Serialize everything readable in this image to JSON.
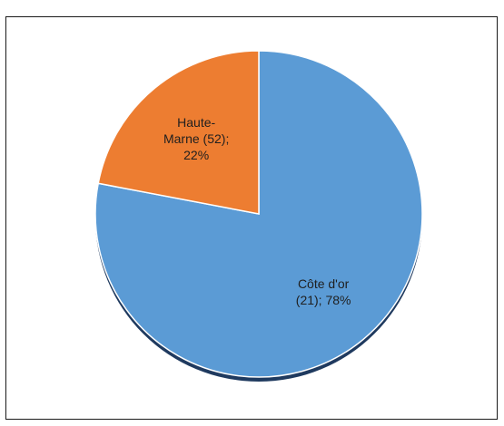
{
  "chart_data": {
    "type": "pie",
    "title": "",
    "slices": [
      {
        "name": "Côte d'or",
        "label_lines": [
          "Côte d'or",
          "(21); 78%"
        ],
        "value": 78,
        "color": "#5B9BD5"
      },
      {
        "name": "Haute-Marne",
        "label_lines": [
          "Haute-",
          "Marne (52);",
          "22%"
        ],
        "value": 22,
        "color": "#ED7D31"
      }
    ],
    "start_angle_deg": 0,
    "direction": "clockwise",
    "legend": "none",
    "shadow_color": "#1F3A5F"
  }
}
